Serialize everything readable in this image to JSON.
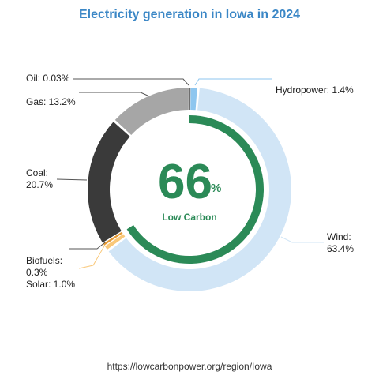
{
  "chart_data": {
    "type": "pie",
    "title": "Electricity generation in Iowa in 2024",
    "center_value": "66",
    "center_unit": "%",
    "center_label": "Low Carbon",
    "low_carbon_share": 66,
    "slices": [
      {
        "name": "Hydropower",
        "label": "Hydropower: 1.4%",
        "value": 1.4,
        "color": "#8ec6ef"
      },
      {
        "name": "Wind",
        "label_lines": [
          "Wind:",
          "63.4%"
        ],
        "value": 63.4,
        "color": "#d1e5f6"
      },
      {
        "name": "Solar",
        "label": "Solar: 1.0%",
        "value": 1.0,
        "color": "#f9c87a"
      },
      {
        "name": "Biofuels",
        "label_lines": [
          "Biofuels:",
          "0.3%"
        ],
        "value": 0.3,
        "color": "#e59a35"
      },
      {
        "name": "Coal",
        "label_lines": [
          "Coal:",
          "20.7%"
        ],
        "value": 20.7,
        "color": "#3a3a3a"
      },
      {
        "name": "Gas",
        "label": "Gas: 13.2%",
        "value": 13.2,
        "color": "#a6a6a6"
      },
      {
        "name": "Oil",
        "label": "Oil: 0.03%",
        "value": 0.03,
        "color": "#6e6e6e"
      }
    ]
  },
  "source": "https://lowcarbonpower.org/region/Iowa",
  "colors": {
    "title": "#3b87c6",
    "low_carbon": "#2b8a57",
    "leader": "#555555"
  }
}
